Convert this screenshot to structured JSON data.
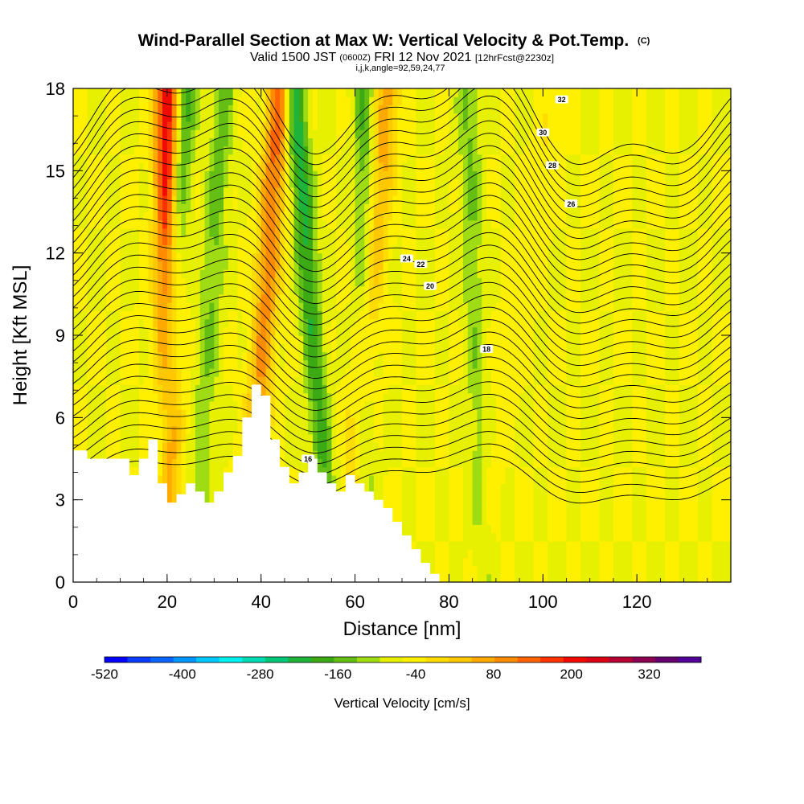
{
  "chart_data": {
    "type": "heatmap",
    "title": "Wind-Parallel Section at Max W: Vertical Velocity & Pot.Temp.",
    "title_mark": "(C)",
    "subtitle_main": "Valid 1500 JST",
    "subtitle_utc": "(0600Z)",
    "subtitle_date": "FRI 12 Nov 2021",
    "subtitle_fcst": "[12hrFcst@2230z]",
    "subtitle_indices": "i,j,k,angle=92,59,24,77",
    "xlabel": "Distance [nm]",
    "ylabel": "Height [Kft MSL]",
    "xlim": [
      0,
      140
    ],
    "ylim": [
      0,
      18
    ],
    "x_ticks": [
      "0",
      "20",
      "40",
      "60",
      "80",
      "100",
      "120"
    ],
    "x_tick_values": [
      0,
      20,
      40,
      60,
      80,
      100,
      120
    ],
    "y_ticks": [
      "0",
      "3",
      "6",
      "9",
      "12",
      "15",
      "18"
    ],
    "y_tick_values": [
      0,
      3,
      6,
      9,
      12,
      15,
      18
    ],
    "colorbar": {
      "label": "Vertical Velocity [cm/s]",
      "tick_labels": [
        "-520",
        "-400",
        "-280",
        "-160",
        "-40",
        "80",
        "200",
        "320"
      ],
      "min": -520,
      "max": 400,
      "step": 40,
      "colors": [
        "#0000ff",
        "#0a3cff",
        "#0a64ff",
        "#0096ff",
        "#00c8ff",
        "#00f0f0",
        "#00dcb4",
        "#00c878",
        "#1eb43c",
        "#3caa14",
        "#64be14",
        "#a0dc14",
        "#e6f000",
        "#fff000",
        "#ffdc00",
        "#ffc800",
        "#ffaa00",
        "#ff8c00",
        "#ff6400",
        "#ff3200",
        "#f00a00",
        "#dc0014",
        "#b40032",
        "#8c0050",
        "#64006e",
        "#500096"
      ]
    },
    "updraft_bands": [
      {
        "x_bottom": 20,
        "x_top": 20,
        "strength": 340
      },
      {
        "x_bottom": 37,
        "x_top": 44,
        "strength": 230
      },
      {
        "x_bottom": 58,
        "x_top": 67,
        "strength": 150
      },
      {
        "x_bottom": 85,
        "x_top": 103,
        "strength": 40
      }
    ],
    "downdraft_bands": [
      {
        "x_bottom": 17,
        "x_top": 24,
        "strength": -170
      },
      {
        "x_bottom": 26,
        "x_top": 32,
        "strength": -110
      },
      {
        "x_bottom": 55,
        "x_top": 47,
        "strength": -200
      },
      {
        "x_bottom": 62,
        "x_top": 62,
        "strength": -120
      },
      {
        "x_bottom": 87,
        "x_top": 84,
        "strength": -90
      }
    ],
    "terrain": [
      [
        0,
        4.8
      ],
      [
        3,
        4.5
      ],
      [
        10,
        4.5
      ],
      [
        12,
        3.9
      ],
      [
        14,
        4.5
      ],
      [
        16,
        5.2
      ],
      [
        18,
        3.6
      ],
      [
        20,
        2.9
      ],
      [
        22,
        3.2
      ],
      [
        24,
        3.6
      ],
      [
        26,
        3.3
      ],
      [
        28,
        2.9
      ],
      [
        30,
        3.3
      ],
      [
        32,
        4.0
      ],
      [
        34,
        4.6
      ],
      [
        36,
        6.0
      ],
      [
        38,
        7.2
      ],
      [
        40,
        6.8
      ],
      [
        42,
        5.2
      ],
      [
        44,
        4.2
      ],
      [
        46,
        3.6
      ],
      [
        48,
        4.0
      ],
      [
        50,
        4.5
      ],
      [
        52,
        4.0
      ],
      [
        54,
        3.6
      ],
      [
        56,
        3.3
      ],
      [
        58,
        3.9
      ],
      [
        60,
        3.6
      ],
      [
        62,
        3.3
      ],
      [
        64,
        3.0
      ],
      [
        66,
        2.7
      ],
      [
        68,
        2.2
      ],
      [
        70,
        1.7
      ],
      [
        72,
        1.2
      ],
      [
        74,
        0.7
      ],
      [
        76,
        0.3
      ],
      [
        78,
        0.0
      ],
      [
        140,
        0.0
      ]
    ],
    "theta_contours": [
      {
        "label": "16",
        "label_x": 50,
        "anchor": 4.5
      },
      {
        "label": "18",
        "label_x": 88,
        "anchor": 8.5
      },
      {
        "label": "20",
        "label_x": 76,
        "anchor": 10.8
      },
      {
        "label": "22",
        "label_x": 74,
        "anchor": 11.6
      },
      {
        "label": "24",
        "label_x": 71,
        "anchor": 11.8
      },
      {
        "label": "26",
        "label_x": 106,
        "anchor": 13.8
      },
      {
        "label": "28",
        "label_x": 102,
        "anchor": 15.2
      },
      {
        "label": "30",
        "label_x": 100,
        "anchor": 16.4
      },
      {
        "label": "32",
        "label_x": 104,
        "anchor": 17.6
      }
    ],
    "contour_values": [
      16,
      16.5,
      17,
      17.5,
      18,
      18.5,
      19,
      19.5,
      20,
      20.5,
      21,
      21.5,
      22,
      22.5,
      23,
      23.5,
      24,
      24.5,
      25,
      25.5,
      26,
      26.5,
      27,
      27.5,
      28,
      28.5,
      29,
      29.5,
      30,
      30.5,
      31,
      31.5,
      32
    ]
  }
}
